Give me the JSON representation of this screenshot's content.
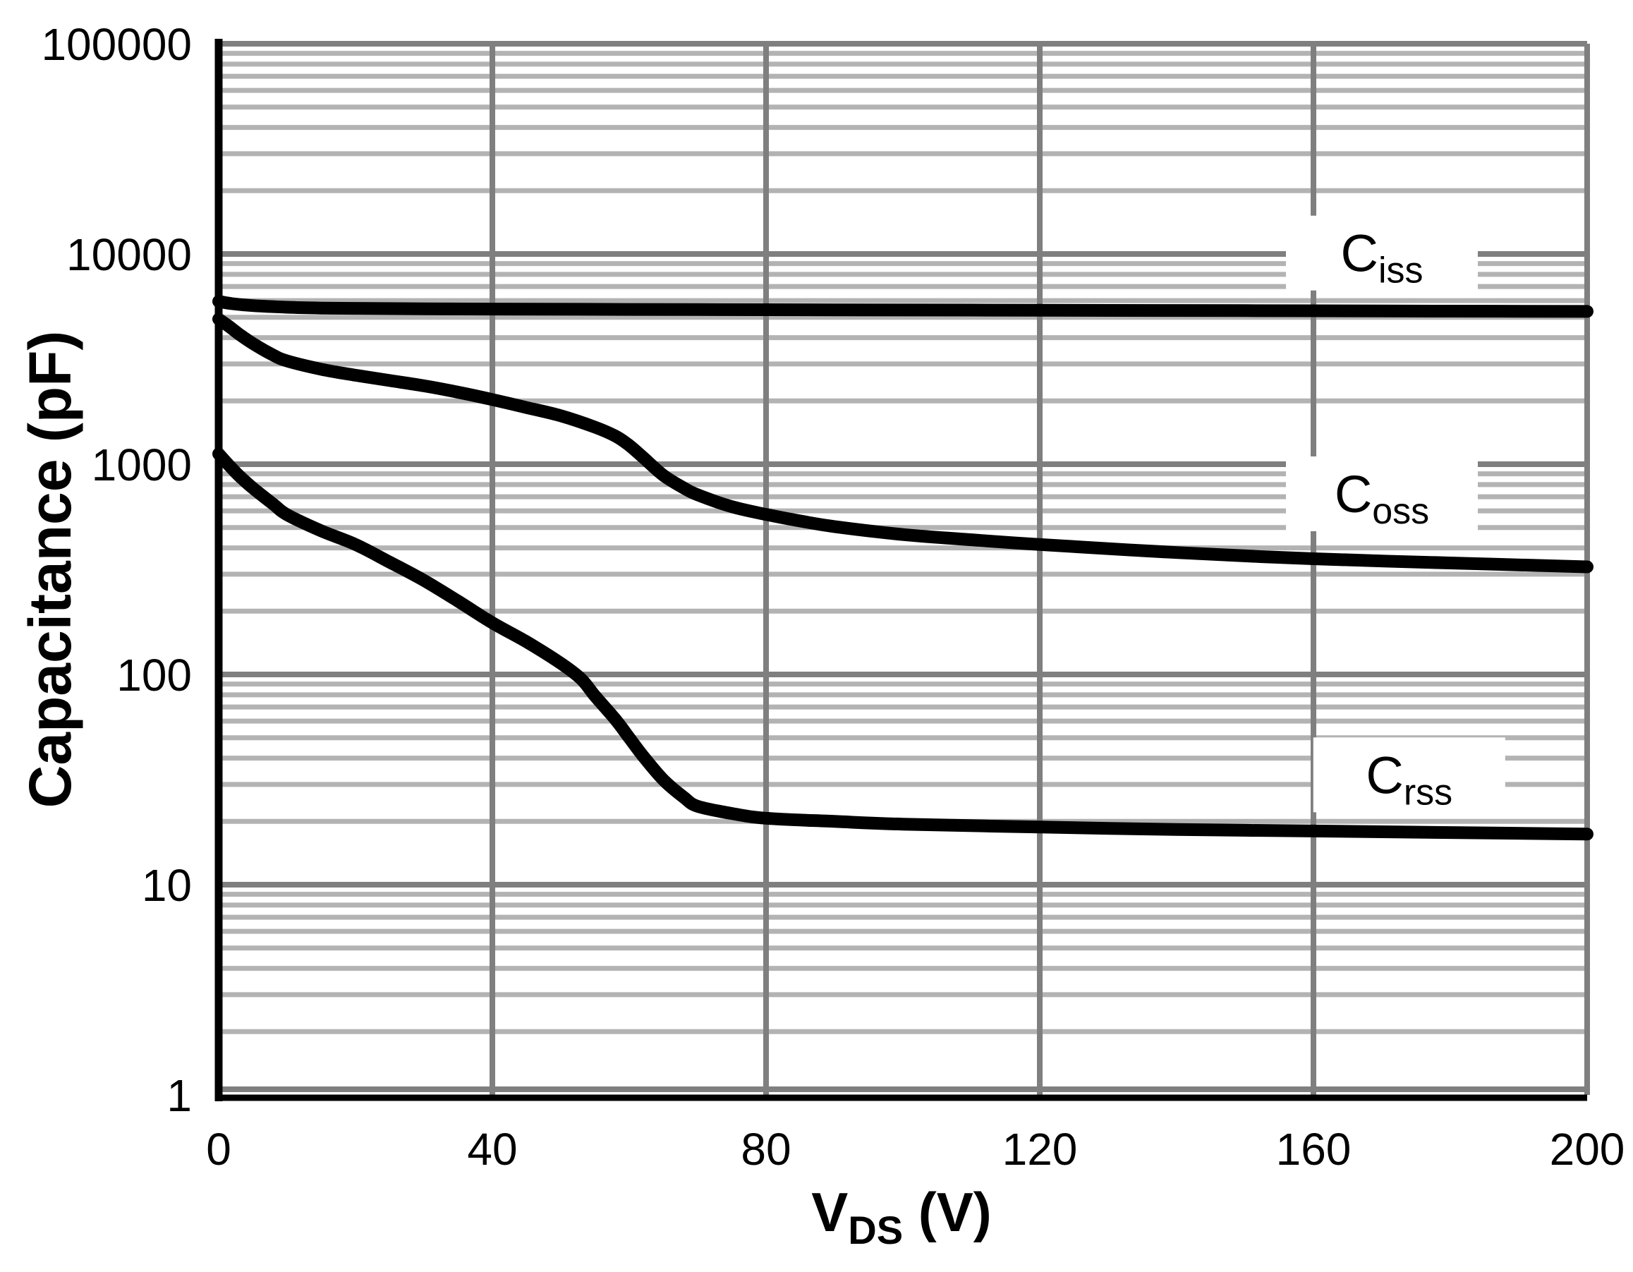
{
  "figure": {
    "background": "#ffffff",
    "curve_color": "#000000",
    "axis_color": "#000000"
  },
  "chart_data": {
    "type": "line",
    "title": "",
    "xlabel": {
      "main": "V",
      "sub": "DS",
      "suffix": " (V)"
    },
    "ylabel": "Capacitance (pF)",
    "x_axis": {
      "min": 0,
      "max": 200,
      "ticks": [
        0,
        40,
        80,
        120,
        160,
        200
      ],
      "tick_labels": [
        "0",
        "40",
        "80",
        "120",
        "160",
        "200"
      ]
    },
    "y_axis": {
      "scale": "log",
      "min": 1,
      "max": 100000,
      "ticks": [
        1,
        10,
        100,
        1000,
        10000,
        100000
      ],
      "tick_labels": [
        "1",
        "10",
        "100",
        "1000",
        "10000",
        "100000"
      ]
    },
    "grid": {
      "major_color": "#7f7f7f",
      "minor_color": "#b3b3b3",
      "horizontal_minors": true,
      "vertical_minors": false
    },
    "legend_position": "labels-on-chart",
    "series": [
      {
        "name": "Ciss",
        "label": {
          "main": "C",
          "sub": "iss"
        },
        "label_anchor": [
          170,
          10100
        ],
        "color": "#000000",
        "points": [
          [
            0,
            5950
          ],
          [
            2,
            5800
          ],
          [
            5,
            5680
          ],
          [
            10,
            5580
          ],
          [
            15,
            5530
          ],
          [
            20,
            5510
          ],
          [
            30,
            5485
          ],
          [
            40,
            5470
          ],
          [
            60,
            5450
          ],
          [
            80,
            5432
          ],
          [
            100,
            5415
          ],
          [
            120,
            5400
          ],
          [
            140,
            5385
          ],
          [
            160,
            5368
          ],
          [
            180,
            5350
          ],
          [
            200,
            5330
          ]
        ]
      },
      {
        "name": "Coss",
        "label": {
          "main": "C",
          "sub": "oss"
        },
        "label_anchor": [
          170,
          723
        ],
        "color": "#000000",
        "points": [
          [
            0,
            4900
          ],
          [
            1,
            4650
          ],
          [
            2,
            4400
          ],
          [
            3,
            4150
          ],
          [
            5,
            3750
          ],
          [
            8,
            3300
          ],
          [
            10,
            3100
          ],
          [
            15,
            2830
          ],
          [
            20,
            2650
          ],
          [
            25,
            2500
          ],
          [
            30,
            2360
          ],
          [
            35,
            2200
          ],
          [
            40,
            2030
          ],
          [
            45,
            1860
          ],
          [
            50,
            1700
          ],
          [
            55,
            1500
          ],
          [
            58,
            1360
          ],
          [
            60,
            1230
          ],
          [
            62,
            1080
          ],
          [
            65,
            885
          ],
          [
            68,
            770
          ],
          [
            70,
            715
          ],
          [
            75,
            628
          ],
          [
            80,
            577
          ],
          [
            85,
            537
          ],
          [
            90,
            505
          ],
          [
            100,
            463
          ],
          [
            110,
            437
          ],
          [
            120,
            415
          ],
          [
            140,
            380
          ],
          [
            160,
            355
          ],
          [
            180,
            339
          ],
          [
            200,
            325
          ]
        ]
      },
      {
        "name": "Crss",
        "label": {
          "main": "C",
          "sub": "rss"
        },
        "label_anchor": [
          174,
          33.3
        ],
        "color": "#000000",
        "points": [
          [
            0,
            1120
          ],
          [
            1,
            1030
          ],
          [
            2,
            950
          ],
          [
            3,
            880
          ],
          [
            5,
            770
          ],
          [
            8,
            645
          ],
          [
            10,
            575
          ],
          [
            15,
            482
          ],
          [
            20,
            415
          ],
          [
            25,
            342
          ],
          [
            30,
            280
          ],
          [
            35,
            223
          ],
          [
            40,
            176
          ],
          [
            45,
            143
          ],
          [
            50,
            113
          ],
          [
            53,
            95
          ],
          [
            55,
            79
          ],
          [
            58,
            61
          ],
          [
            60,
            50
          ],
          [
            62,
            41
          ],
          [
            65,
            31.5
          ],
          [
            68,
            26
          ],
          [
            70,
            23.6
          ],
          [
            75,
            21.8
          ],
          [
            80,
            20.7
          ],
          [
            90,
            20
          ],
          [
            100,
            19.4
          ],
          [
            120,
            18.8
          ],
          [
            140,
            18.3
          ],
          [
            160,
            18
          ],
          [
            180,
            17.7
          ],
          [
            200,
            17.4
          ]
        ]
      }
    ]
  }
}
